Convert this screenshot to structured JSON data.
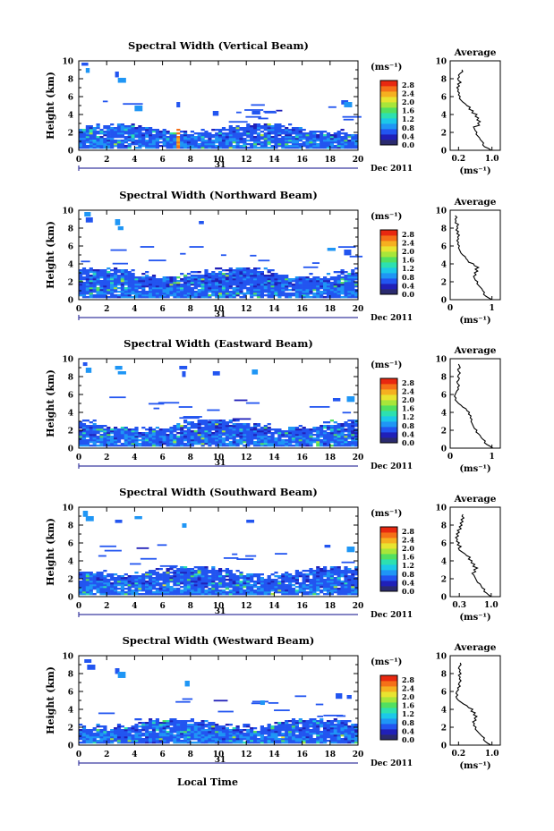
{
  "figure": {
    "common": {
      "ylabel": "Height (km)",
      "date_label": "Dec 2011",
      "day_label": "31",
      "units_label": "(ms⁻¹)",
      "avg_title": "Average",
      "avg_xlabel": "(ms⁻¹)",
      "xlabel": "Local Time",
      "x_ticks": [
        "0",
        "2",
        "4",
        "6",
        "8",
        "10",
        "12",
        "14",
        "16",
        "18",
        "20"
      ],
      "y_ticks": [
        "0",
        "2",
        "4",
        "6",
        "8",
        "10"
      ],
      "colorbar_ticks": [
        "0.0",
        "0.4",
        "0.8",
        "1.2",
        "1.6",
        "2.0",
        "2.4",
        "2.8"
      ],
      "colorbar_colors": [
        "#2a2a6e",
        "#2020b8",
        "#2255f0",
        "#1f96f5",
        "#1cc8e8",
        "#2de0b0",
        "#52e060",
        "#a8e63a",
        "#e8e430",
        "#f5b020",
        "#f57018",
        "#e82810"
      ]
    }
  },
  "chart_data": [
    {
      "type": "heatmap",
      "title": "Spectral Width (Vertical Beam)",
      "xlabel": "",
      "ylabel": "Height (km)",
      "xlim": [
        0,
        20
      ],
      "ylim": [
        0,
        10
      ],
      "clim": [
        0.0,
        3.0
      ],
      "colorbar_label": "(ms⁻¹)",
      "layer_top_km": 2.6,
      "high_echoes_km": [
        [
          0.2,
          9.8
        ],
        [
          0.5,
          9.2
        ],
        [
          2.6,
          8.8
        ],
        [
          2.8,
          8.1
        ],
        [
          4.0,
          5.0
        ],
        [
          7.0,
          5.4
        ],
        [
          9.6,
          4.4
        ],
        [
          12.4,
          4.4
        ],
        [
          18.8,
          5.6
        ],
        [
          19.0,
          5.4
        ]
      ],
      "average_profile": {
        "title": "Average",
        "xlabel": "(ms⁻¹)",
        "x_ticks": [
          "0.2",
          "1.0"
        ],
        "xlim": [
          0.0,
          1.2
        ],
        "height": [
          0.0,
          0.2,
          0.4,
          0.6,
          0.8,
          1.0,
          1.2,
          1.4,
          1.6,
          1.8,
          2.0,
          2.2,
          2.4,
          2.6,
          2.8,
          3.0,
          3.2,
          3.4,
          3.6,
          3.8,
          4.0,
          4.2,
          4.4,
          4.6,
          4.8,
          5.0,
          5.2,
          5.4,
          5.6,
          5.8,
          6.0,
          6.2,
          6.4,
          6.6,
          6.8,
          7.0,
          7.2,
          7.4,
          7.6,
          7.8,
          8.0,
          8.2,
          8.4,
          8.6,
          8.8,
          9.0
        ],
        "width": [
          0.98,
          0.92,
          0.82,
          0.78,
          0.8,
          0.76,
          0.72,
          0.7,
          0.66,
          0.62,
          0.64,
          0.6,
          0.58,
          0.56,
          0.7,
          0.66,
          0.72,
          0.64,
          0.68,
          0.6,
          0.64,
          0.52,
          0.55,
          0.45,
          0.48,
          0.4,
          0.36,
          0.3,
          0.26,
          0.22,
          0.24,
          0.2,
          0.22,
          0.18,
          0.2,
          0.16,
          0.22,
          0.18,
          0.26,
          0.2,
          0.18,
          0.22,
          0.2,
          0.24,
          0.3,
          0.28
        ]
      }
    },
    {
      "type": "heatmap",
      "title": "Spectral Width (Northward Beam)",
      "xlabel": "",
      "ylabel": "Height (km)",
      "xlim": [
        0,
        20
      ],
      "ylim": [
        0,
        10
      ],
      "clim": [
        0.0,
        3.0
      ],
      "colorbar_label": "(ms⁻¹)",
      "layer_top_km": 3.2,
      "high_echoes_km": [
        [
          0.4,
          9.8
        ],
        [
          0.5,
          9.2
        ],
        [
          2.6,
          9.0
        ],
        [
          2.8,
          8.2
        ],
        [
          8.6,
          8.8
        ],
        [
          17.8,
          5.8
        ],
        [
          19.0,
          5.6
        ]
      ],
      "average_profile": {
        "title": "Average",
        "xlabel": "(ms⁻¹)",
        "x_ticks": [
          "0",
          "1"
        ],
        "xlim": [
          0.0,
          1.2
        ],
        "height": [
          0.0,
          0.2,
          0.4,
          0.6,
          0.8,
          1.0,
          1.2,
          1.4,
          1.6,
          1.8,
          2.0,
          2.2,
          2.4,
          2.6,
          2.8,
          3.0,
          3.2,
          3.4,
          3.6,
          3.8,
          4.0,
          4.2,
          4.4,
          4.6,
          4.8,
          5.0,
          5.2,
          5.4,
          5.6,
          5.8,
          6.0,
          6.2,
          6.4,
          6.6,
          6.8,
          7.0,
          7.2,
          7.4,
          7.6,
          7.8,
          8.0,
          8.2,
          8.4,
          8.6,
          8.8,
          9.0,
          9.2,
          9.4
        ],
        "width": [
          1.0,
          0.92,
          0.85,
          0.8,
          0.82,
          0.78,
          0.76,
          0.72,
          0.68,
          0.64,
          0.66,
          0.6,
          0.58,
          0.56,
          0.62,
          0.58,
          0.66,
          0.6,
          0.68,
          0.58,
          0.56,
          0.44,
          0.42,
          0.38,
          0.36,
          0.3,
          0.26,
          0.24,
          0.22,
          0.2,
          0.22,
          0.18,
          0.2,
          0.16,
          0.2,
          0.18,
          0.22,
          0.16,
          0.2,
          0.14,
          0.18,
          0.16,
          0.2,
          0.12,
          0.14,
          0.12,
          0.16,
          0.12
        ]
      }
    },
    {
      "type": "heatmap",
      "title": "Spectral Width (Eastward Beam)",
      "xlabel": "",
      "ylabel": "Height (km)",
      "xlim": [
        0,
        20
      ],
      "ylim": [
        0,
        10
      ],
      "clim": [
        0.0,
        3.0
      ],
      "colorbar_label": "(ms⁻¹)",
      "layer_top_km": 2.8,
      "high_echoes_km": [
        [
          0.3,
          9.6
        ],
        [
          0.5,
          9.0
        ],
        [
          2.6,
          9.2
        ],
        [
          2.8,
          8.6
        ],
        [
          7.2,
          9.2
        ],
        [
          7.4,
          8.6
        ],
        [
          9.6,
          8.6
        ],
        [
          12.4,
          8.8
        ],
        [
          18.2,
          5.6
        ],
        [
          19.2,
          5.8
        ]
      ],
      "average_profile": {
        "title": "Average",
        "xlabel": "(ms⁻¹)",
        "x_ticks": [
          "0",
          "1"
        ],
        "xlim": [
          0.0,
          1.2
        ],
        "height": [
          0.0,
          0.2,
          0.4,
          0.6,
          0.8,
          1.0,
          1.2,
          1.4,
          1.6,
          1.8,
          2.0,
          2.2,
          2.4,
          2.6,
          2.8,
          3.0,
          3.2,
          3.4,
          3.6,
          3.8,
          4.0,
          4.2,
          4.4,
          4.6,
          4.8,
          5.0,
          5.2,
          5.4,
          5.6,
          5.8,
          6.0,
          6.2,
          6.4,
          6.6,
          6.8,
          7.0,
          7.2,
          7.4,
          7.6,
          7.8,
          8.0,
          8.2,
          8.4,
          8.6,
          8.8,
          9.0,
          9.2,
          9.4
        ],
        "width": [
          1.02,
          0.96,
          0.88,
          0.82,
          0.84,
          0.78,
          0.74,
          0.72,
          0.68,
          0.62,
          0.64,
          0.58,
          0.56,
          0.54,
          0.52,
          0.5,
          0.52,
          0.48,
          0.5,
          0.44,
          0.46,
          0.4,
          0.38,
          0.3,
          0.26,
          0.2,
          0.16,
          0.12,
          0.14,
          0.1,
          0.12,
          0.14,
          0.16,
          0.2,
          0.18,
          0.22,
          0.18,
          0.16,
          0.2,
          0.22,
          0.18,
          0.2,
          0.24,
          0.2,
          0.18,
          0.24,
          0.22,
          0.2
        ]
      }
    },
    {
      "type": "heatmap",
      "title": "Spectral Width (Southward Beam)",
      "xlabel": "",
      "ylabel": "Height (km)",
      "xlim": [
        0,
        20
      ],
      "ylim": [
        0,
        10
      ],
      "clim": [
        0.0,
        3.0
      ],
      "colorbar_label": "(ms⁻¹)",
      "layer_top_km": 3.0,
      "high_echoes_km": [
        [
          0.3,
          9.6
        ],
        [
          0.5,
          9.0
        ],
        [
          2.6,
          8.6
        ],
        [
          4.0,
          9.0
        ],
        [
          7.4,
          8.2
        ],
        [
          12.0,
          8.6
        ],
        [
          17.6,
          5.8
        ],
        [
          19.2,
          5.6
        ]
      ],
      "average_profile": {
        "title": "Average",
        "xlabel": "(ms⁻¹)",
        "x_ticks": [
          "0.3",
          "1.0"
        ],
        "xlim": [
          0.1,
          1.2
        ],
        "height": [
          0.0,
          0.2,
          0.4,
          0.6,
          0.8,
          1.0,
          1.2,
          1.4,
          1.6,
          1.8,
          2.0,
          2.2,
          2.4,
          2.6,
          2.8,
          3.0,
          3.2,
          3.4,
          3.6,
          3.8,
          4.0,
          4.2,
          4.4,
          4.6,
          4.8,
          5.0,
          5.2,
          5.4,
          5.6,
          5.8,
          6.0,
          6.2,
          6.4,
          6.6,
          6.8,
          7.0,
          7.2,
          7.4,
          7.6,
          7.8,
          8.0,
          8.2,
          8.4,
          8.6,
          8.8,
          9.0,
          9.2
        ],
        "width": [
          1.0,
          0.94,
          0.9,
          0.84,
          0.86,
          0.8,
          0.78,
          0.76,
          0.7,
          0.68,
          0.66,
          0.64,
          0.62,
          0.58,
          0.66,
          0.62,
          0.7,
          0.6,
          0.64,
          0.56,
          0.58,
          0.5,
          0.54,
          0.46,
          0.42,
          0.36,
          0.3,
          0.28,
          0.34,
          0.26,
          0.3,
          0.24,
          0.26,
          0.22,
          0.28,
          0.24,
          0.3,
          0.26,
          0.34,
          0.3,
          0.36,
          0.32,
          0.38,
          0.34,
          0.4,
          0.36,
          0.38
        ]
      }
    },
    {
      "type": "heatmap",
      "title": "Spectral Width (Westward Beam)",
      "xlabel": "Local Time",
      "ylabel": "Height (km)",
      "xlim": [
        0,
        20
      ],
      "ylim": [
        0,
        10
      ],
      "clim": [
        0.0,
        3.0
      ],
      "colorbar_label": "(ms⁻¹)",
      "layer_top_km": 2.6,
      "high_echoes_km": [
        [
          0.4,
          9.6
        ],
        [
          0.6,
          9.0
        ],
        [
          2.6,
          8.6
        ],
        [
          2.8,
          8.2
        ],
        [
          7.6,
          7.2
        ],
        [
          13.0,
          5.0
        ],
        [
          18.4,
          5.8
        ],
        [
          19.2,
          5.6
        ]
      ],
      "average_profile": {
        "title": "Average",
        "xlabel": "(ms⁻¹)",
        "x_ticks": [
          "0.2",
          "1.0"
        ],
        "xlim": [
          0.0,
          1.2
        ],
        "height": [
          0.0,
          0.2,
          0.4,
          0.6,
          0.8,
          1.0,
          1.2,
          1.4,
          1.6,
          1.8,
          2.0,
          2.2,
          2.4,
          2.6,
          2.8,
          3.0,
          3.2,
          3.4,
          3.6,
          3.8,
          4.0,
          4.2,
          4.4,
          4.6,
          4.8,
          5.0,
          5.2,
          5.4,
          5.6,
          5.8,
          6.0,
          6.2,
          6.4,
          6.6,
          6.8,
          7.0,
          7.2,
          7.4,
          7.6,
          7.8,
          8.0,
          8.2,
          8.4,
          8.6,
          8.8,
          9.0,
          9.2
        ],
        "width": [
          0.98,
          0.9,
          0.84,
          0.8,
          0.82,
          0.76,
          0.72,
          0.68,
          0.64,
          0.6,
          0.62,
          0.56,
          0.58,
          0.54,
          0.62,
          0.58,
          0.64,
          0.56,
          0.6,
          0.5,
          0.54,
          0.44,
          0.4,
          0.32,
          0.26,
          0.2,
          0.16,
          0.14,
          0.18,
          0.14,
          0.16,
          0.2,
          0.18,
          0.24,
          0.2,
          0.22,
          0.26,
          0.22,
          0.24,
          0.2,
          0.26,
          0.22,
          0.24,
          0.2,
          0.22,
          0.26,
          0.24
        ]
      }
    }
  ]
}
